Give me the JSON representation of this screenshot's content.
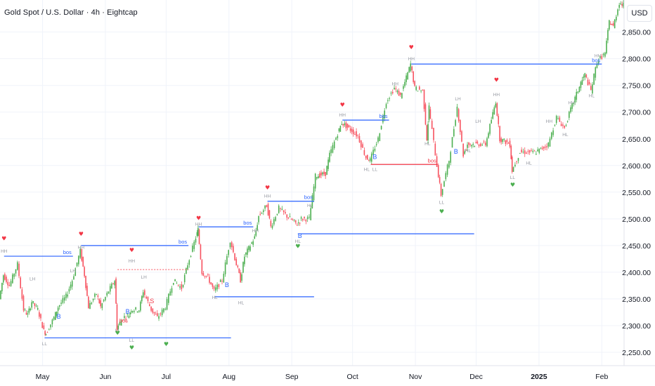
{
  "header": {
    "title": "Gold Spot / U.S. Dollar · 4h · Eightcap",
    "currency": "USD"
  },
  "colors": {
    "up": "#4caf50",
    "down": "#f7525f",
    "bos_line": "#2962ff",
    "choch_line": "#f23645",
    "dotted_line": "#f7525f",
    "grid": "#f0f3fa",
    "axis_text": "#131722",
    "label_gray": "#9598a1"
  },
  "chart_data": {
    "type": "line",
    "title": "Gold Spot / U.S. Dollar · 4h · Eightcap",
    "ylim": [
      2225,
      2910
    ],
    "xlim": [
      "2024-04-10",
      "2025-02-12"
    ],
    "y_ticks": [
      "2,250.00",
      "2,300.00",
      "2,350.00",
      "2,400.00",
      "2,450.00",
      "2,500.00",
      "2,550.00",
      "2,600.00",
      "2,650.00",
      "2,700.00",
      "2,750.00",
      "2,800.00",
      "2,850.00"
    ],
    "y_tick_values": [
      2250,
      2300,
      2350,
      2400,
      2450,
      2500,
      2550,
      2600,
      2650,
      2700,
      2750,
      2800,
      2850
    ],
    "x_ticks": [
      {
        "date": "2024-05-01",
        "label": "May",
        "bold": false
      },
      {
        "date": "2024-06-01",
        "label": "Jun",
        "bold": false
      },
      {
        "date": "2024-07-01",
        "label": "Jul",
        "bold": false
      },
      {
        "date": "2024-08-01",
        "label": "Aug",
        "bold": false
      },
      {
        "date": "2024-09-01",
        "label": "Sep",
        "bold": false
      },
      {
        "date": "2024-10-01",
        "label": "Oct",
        "bold": false
      },
      {
        "date": "2024-11-01",
        "label": "Nov",
        "bold": false
      },
      {
        "date": "2024-12-01",
        "label": "Dec",
        "bold": false
      },
      {
        "date": "2025-01-01",
        "label": "2025",
        "bold": true
      },
      {
        "date": "2025-02-01",
        "label": "Feb",
        "bold": false
      }
    ],
    "series": [
      {
        "points": [
          [
            "2024-04-10",
            2350
          ],
          [
            "2024-04-12",
            2395
          ],
          [
            "2024-04-15",
            2375
          ],
          [
            "2024-04-19",
            2415
          ],
          [
            "2024-04-22",
            2330
          ],
          [
            "2024-04-24",
            2320
          ],
          [
            "2024-04-26",
            2345
          ],
          [
            "2024-04-29",
            2330
          ],
          [
            "2024-05-02",
            2290
          ],
          [
            "2024-05-03",
            2285
          ],
          [
            "2024-05-07",
            2315
          ],
          [
            "2024-05-09",
            2335
          ],
          [
            "2024-05-13",
            2355
          ],
          [
            "2024-05-16",
            2385
          ],
          [
            "2024-05-20",
            2440
          ],
          [
            "2024-05-22",
            2395
          ],
          [
            "2024-05-24",
            2335
          ],
          [
            "2024-05-28",
            2360
          ],
          [
            "2024-05-30",
            2335
          ],
          [
            "2024-06-03",
            2365
          ],
          [
            "2024-06-06",
            2385
          ],
          [
            "2024-06-07",
            2295
          ],
          [
            "2024-06-10",
            2315
          ],
          [
            "2024-06-13",
            2320
          ],
          [
            "2024-06-14",
            2330
          ],
          [
            "2024-06-18",
            2330
          ],
          [
            "2024-06-20",
            2365
          ],
          [
            "2024-06-24",
            2330
          ],
          [
            "2024-06-27",
            2315
          ],
          [
            "2024-07-01",
            2335
          ],
          [
            "2024-07-05",
            2385
          ],
          [
            "2024-07-09",
            2370
          ],
          [
            "2024-07-12",
            2415
          ],
          [
            "2024-07-16",
            2465
          ],
          [
            "2024-07-17",
            2480
          ],
          [
            "2024-07-19",
            2400
          ],
          [
            "2024-07-22",
            2390
          ],
          [
            "2024-07-25",
            2365
          ],
          [
            "2024-07-29",
            2385
          ],
          [
            "2024-08-02",
            2460
          ],
          [
            "2024-08-05",
            2415
          ],
          [
            "2024-08-07",
            2385
          ],
          [
            "2024-08-09",
            2430
          ],
          [
            "2024-08-14",
            2465
          ],
          [
            "2024-08-16",
            2505
          ],
          [
            "2024-08-20",
            2525
          ],
          [
            "2024-08-22",
            2485
          ],
          [
            "2024-08-26",
            2520
          ],
          [
            "2024-08-30",
            2505
          ],
          [
            "2024-09-04",
            2490
          ],
          [
            "2024-09-06",
            2500
          ],
          [
            "2024-09-10",
            2500
          ],
          [
            "2024-09-13",
            2580
          ],
          [
            "2024-09-18",
            2585
          ],
          [
            "2024-09-20",
            2620
          ],
          [
            "2024-09-24",
            2660
          ],
          [
            "2024-09-26",
            2680
          ],
          [
            "2024-10-01",
            2665
          ],
          [
            "2024-10-04",
            2655
          ],
          [
            "2024-10-08",
            2615
          ],
          [
            "2024-10-10",
            2610
          ],
          [
            "2024-10-14",
            2650
          ],
          [
            "2024-10-18",
            2720
          ],
          [
            "2024-10-22",
            2745
          ],
          [
            "2024-10-25",
            2730
          ],
          [
            "2024-10-30",
            2790
          ],
          [
            "2024-11-01",
            2745
          ],
          [
            "2024-11-05",
            2740
          ],
          [
            "2024-11-07",
            2650
          ],
          [
            "2024-11-08",
            2710
          ],
          [
            "2024-11-12",
            2600
          ],
          [
            "2024-11-14",
            2545
          ],
          [
            "2024-11-18",
            2610
          ],
          [
            "2024-11-22",
            2710
          ],
          [
            "2024-11-25",
            2620
          ],
          [
            "2024-11-27",
            2640
          ],
          [
            "2024-12-02",
            2640
          ],
          [
            "2024-12-06",
            2640
          ],
          [
            "2024-12-11",
            2720
          ],
          [
            "2024-12-13",
            2650
          ],
          [
            "2024-12-18",
            2640
          ],
          [
            "2024-12-19",
            2590
          ],
          [
            "2024-12-23",
            2625
          ],
          [
            "2024-12-27",
            2625
          ],
          [
            "2024-12-31",
            2625
          ],
          [
            "2025-01-06",
            2640
          ],
          [
            "2025-01-10",
            2690
          ],
          [
            "2025-01-14",
            2670
          ],
          [
            "2025-01-17",
            2705
          ],
          [
            "2025-01-22",
            2755
          ],
          [
            "2025-01-24",
            2770
          ],
          [
            "2025-01-27",
            2740
          ],
          [
            "2025-01-30",
            2795
          ],
          [
            "2025-02-03",
            2810
          ],
          [
            "2025-02-05",
            2870
          ],
          [
            "2025-02-07",
            2860
          ],
          [
            "2025-02-10",
            2905
          ],
          [
            "2025-02-12",
            2900
          ]
        ]
      }
    ],
    "structure_lines": [
      {
        "kind": "bos",
        "y": 2430,
        "x1": "2024-04-12",
        "x2": "2024-05-16",
        "label": "bos"
      },
      {
        "kind": "bos",
        "y": 2450,
        "x1": "2024-05-20",
        "x2": "2024-07-12",
        "label": "bos"
      },
      {
        "kind": "bos",
        "y": 2485,
        "x1": "2024-07-17",
        "x2": "2024-08-13",
        "label": "bos"
      },
      {
        "kind": "bos",
        "y": 2533,
        "x1": "2024-08-20",
        "x2": "2024-09-12",
        "label": "bos"
      },
      {
        "kind": "bos",
        "y": 2685,
        "x1": "2024-09-26",
        "x2": "2024-10-19",
        "label": "bos"
      },
      {
        "kind": "bos",
        "y": 2790,
        "x1": "2024-10-30",
        "x2": "2025-02-01",
        "label": "bos"
      },
      {
        "kind": "support",
        "y": 2277,
        "x1": "2024-05-02",
        "x2": "2024-08-02"
      },
      {
        "kind": "support",
        "y": 2354,
        "x1": "2024-07-25",
        "x2": "2024-09-12"
      },
      {
        "kind": "support",
        "y": 2472,
        "x1": "2024-09-04",
        "x2": "2024-11-30"
      },
      {
        "kind": "choch",
        "y": 2602,
        "x1": "2024-10-10",
        "x2": "2024-11-12",
        "label": "bos"
      },
      {
        "kind": "dotted",
        "y": 2405,
        "x1": "2024-06-07",
        "x2": "2024-07-12"
      }
    ],
    "structure_labels": [
      {
        "text": "HH",
        "date": "2024-04-12",
        "y": 2437,
        "color": "label_gray"
      },
      {
        "text": "HH",
        "date": "2024-05-20",
        "y": 2444,
        "color": "label_gray"
      },
      {
        "text": "LH",
        "date": "2024-04-26",
        "y": 2385,
        "color": "label_gray"
      },
      {
        "text": "LH",
        "date": "2024-05-16",
        "y": 2400,
        "color": "label_gray"
      },
      {
        "text": "LL",
        "date": "2024-05-02",
        "y": 2263,
        "color": "label_gray"
      },
      {
        "text": "LL",
        "date": "2024-06-07",
        "y": 2288,
        "color": "label_gray"
      },
      {
        "text": "LH",
        "date": "2024-06-20",
        "y": 2388,
        "color": "label_gray"
      },
      {
        "text": "HH",
        "date": "2024-06-14",
        "y": 2418,
        "color": "label_gray"
      },
      {
        "text": "LL",
        "date": "2024-06-14",
        "y": 2270,
        "color": "label_gray"
      },
      {
        "text": "HH",
        "date": "2024-07-17",
        "y": 2487,
        "color": "label_gray"
      },
      {
        "text": "HL",
        "date": "2024-07-25",
        "y": 2350,
        "color": "label_gray"
      },
      {
        "text": "HH",
        "date": "2024-08-14",
        "y": 2475,
        "color": "label_gray"
      },
      {
        "text": "HL",
        "date": "2024-08-07",
        "y": 2340,
        "color": "label_gray"
      },
      {
        "text": "HH",
        "date": "2024-08-20",
        "y": 2540,
        "color": "label_gray"
      },
      {
        "text": "HL",
        "date": "2024-09-04",
        "y": 2455,
        "color": "label_gray"
      },
      {
        "text": "HL",
        "date": "2024-09-10",
        "y": 2522,
        "color": "label_gray"
      },
      {
        "text": "HH",
        "date": "2024-09-26",
        "y": 2692,
        "color": "label_gray"
      },
      {
        "text": "HL",
        "date": "2024-10-08",
        "y": 2590,
        "color": "label_gray"
      },
      {
        "text": "LL",
        "date": "2024-10-12",
        "y": 2590,
        "color": "label_gray"
      },
      {
        "text": "HH",
        "date": "2024-10-22",
        "y": 2750,
        "color": "label_gray"
      },
      {
        "text": "HH",
        "date": "2024-10-30",
        "y": 2797,
        "color": "label_gray"
      },
      {
        "text": "HL",
        "date": "2024-11-07",
        "y": 2638,
        "color": "label_gray"
      },
      {
        "text": "LL",
        "date": "2024-11-14",
        "y": 2528,
        "color": "label_gray"
      },
      {
        "text": "LH",
        "date": "2024-11-22",
        "y": 2722,
        "color": "label_gray"
      },
      {
        "text": "HL",
        "date": "2024-11-27",
        "y": 2625,
        "color": "label_gray"
      },
      {
        "text": "LH",
        "date": "2024-12-02",
        "y": 2680,
        "color": "label_gray"
      },
      {
        "text": "HH",
        "date": "2024-12-11",
        "y": 2730,
        "color": "label_gray"
      },
      {
        "text": "LL",
        "date": "2024-12-19",
        "y": 2575,
        "color": "label_gray"
      },
      {
        "text": "HL",
        "date": "2024-12-27",
        "y": 2602,
        "color": "label_gray"
      },
      {
        "text": "HH",
        "date": "2025-01-06",
        "y": 2680,
        "color": "label_gray"
      },
      {
        "text": "HL",
        "date": "2025-01-14",
        "y": 2655,
        "color": "label_gray"
      },
      {
        "text": "HH",
        "date": "2025-01-17",
        "y": 2715,
        "color": "label_gray"
      },
      {
        "text": "HL",
        "date": "2025-01-27",
        "y": 2728,
        "color": "label_gray"
      },
      {
        "text": "HH",
        "date": "2025-01-30",
        "y": 2803,
        "color": "label_gray"
      }
    ],
    "signal_labels": [
      {
        "text": "B",
        "date": "2024-05-09",
        "y": 2313,
        "color": "bos_line"
      },
      {
        "text": "B",
        "date": "2024-06-12",
        "y": 2322,
        "color": "bos_line"
      },
      {
        "text": "S",
        "date": "2024-06-24",
        "y": 2342,
        "color": "choch_line"
      },
      {
        "text": "B",
        "date": "2024-07-31",
        "y": 2372,
        "color": "bos_line"
      },
      {
        "text": "B",
        "date": "2024-09-05",
        "y": 2464,
        "color": "bos_line"
      },
      {
        "text": "B",
        "date": "2024-10-12",
        "y": 2612,
        "color": "bos_line"
      },
      {
        "text": "B",
        "date": "2024-11-21",
        "y": 2622,
        "color": "bos_line"
      },
      {
        "text": "bos",
        "date": "2024-06-10",
        "y": 2306,
        "color": "choch_line"
      }
    ],
    "hearts": [
      {
        "date": "2024-04-12",
        "y": 2460
      },
      {
        "date": "2024-05-20",
        "y": 2468
      },
      {
        "date": "2024-06-14",
        "y": 2438
      },
      {
        "date": "2024-07-17",
        "y": 2498
      },
      {
        "date": "2024-08-20",
        "y": 2555
      },
      {
        "date": "2024-09-26",
        "y": 2710
      },
      {
        "date": "2024-10-30",
        "y": 2818
      },
      {
        "date": "2024-12-11",
        "y": 2757
      }
    ],
    "down_markers": [
      {
        "date": "2024-06-07",
        "y": 2283
      },
      {
        "date": "2024-07-01",
        "y": 2262
      },
      {
        "date": "2024-06-14",
        "y": 2255
      },
      {
        "date": "2024-09-04",
        "y": 2445
      },
      {
        "date": "2024-11-14",
        "y": 2510
      },
      {
        "date": "2024-12-19",
        "y": 2560
      }
    ]
  }
}
